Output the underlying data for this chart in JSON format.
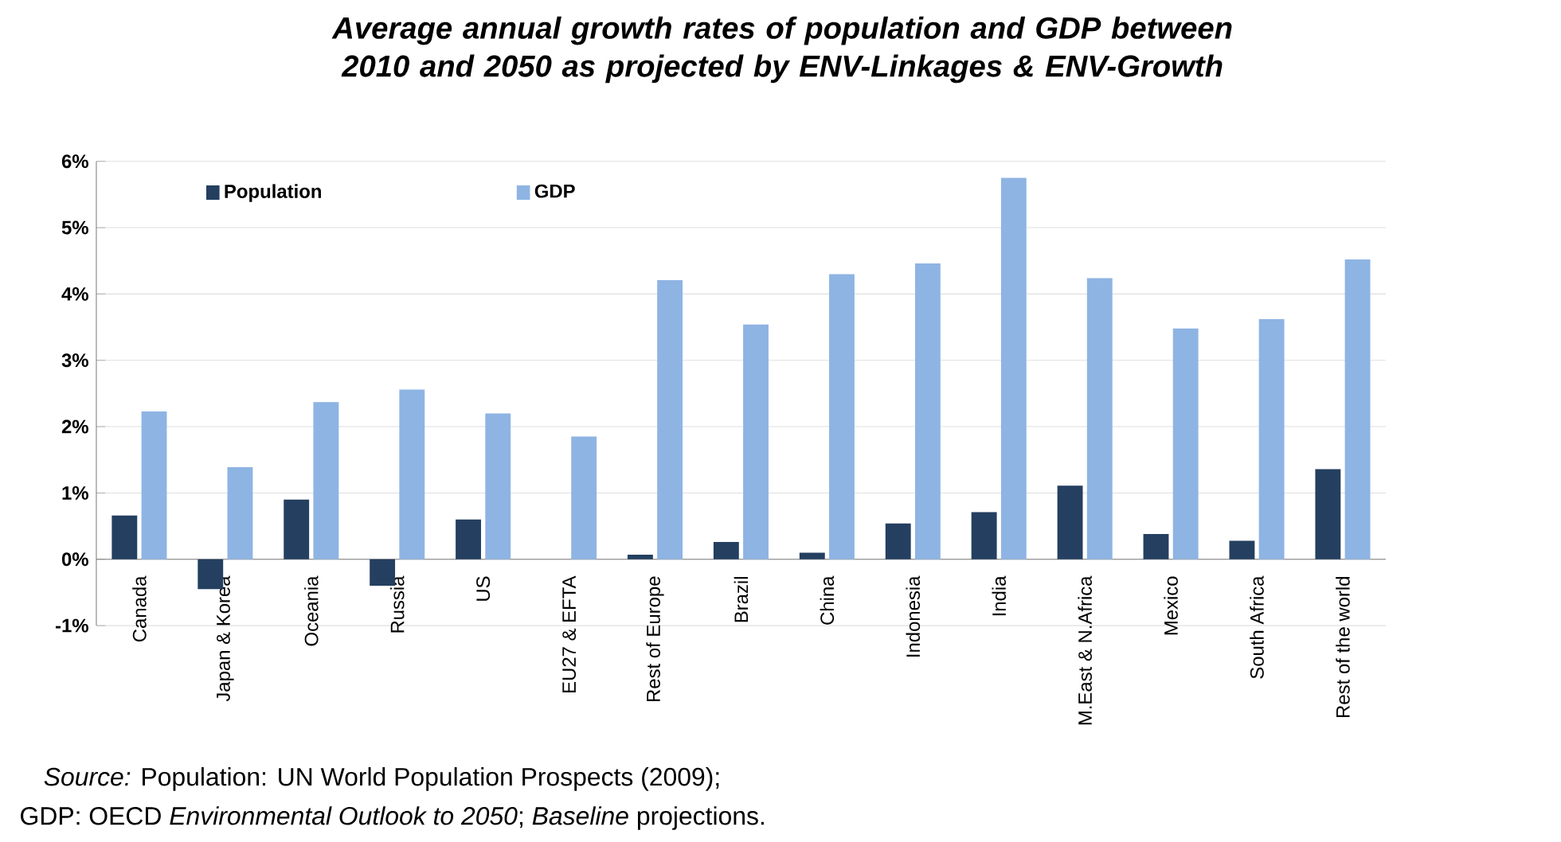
{
  "chart_data": {
    "type": "bar",
    "title": "Average annual growth rates of population and GDP between 2010 and 2050 as projected by ENV-Linkages & ENV-Growth",
    "categories": [
      "Canada",
      "Japan & Korea",
      "Oceania",
      "Russia",
      "US",
      "EU27 & EFTA",
      "Rest of Europe",
      "Brazil",
      "China",
      "Indonesia",
      "India",
      "M.East & N.Africa",
      "Mexico",
      "South Africa",
      "Rest of the world"
    ],
    "series": [
      {
        "name": "Population",
        "color": "#243f60",
        "values": [
          0.66,
          -0.45,
          0.9,
          -0.4,
          0.6,
          null,
          0.07,
          0.26,
          0.1,
          0.54,
          0.71,
          1.11,
          0.38,
          0.28,
          1.36
        ]
      },
      {
        "name": "GDP",
        "color": "#8eb4e3",
        "values": [
          2.23,
          1.39,
          2.37,
          2.56,
          2.2,
          1.85,
          4.21,
          3.54,
          4.3,
          4.46,
          5.75,
          4.24,
          3.48,
          3.62,
          4.52
        ]
      }
    ],
    "ylim": [
      -1,
      6
    ],
    "yticks": [
      {
        "value": -1,
        "label": "-1%"
      },
      {
        "value": 0,
        "label": "0%"
      },
      {
        "value": 1,
        "label": "1%"
      },
      {
        "value": 2,
        "label": "2%"
      },
      {
        "value": 3,
        "label": "3%"
      },
      {
        "value": 4,
        "label": "4%"
      },
      {
        "value": 5,
        "label": "5%"
      },
      {
        "value": 6,
        "label": "6%"
      }
    ],
    "grid": "y",
    "legend": "top left",
    "annotations": [
      "*Source:* Population: UN World Population Prospects (2009);",
      "GDP: OECD *Environmental Outlook to 2050*; *Baseline* projections."
    ]
  }
}
